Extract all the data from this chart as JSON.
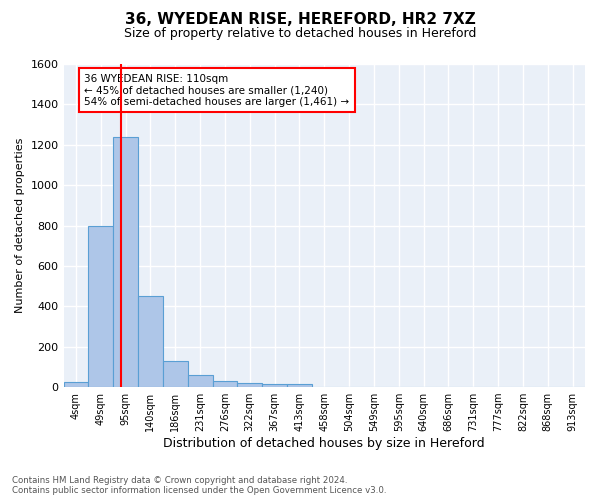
{
  "title": "36, WYEDEAN RISE, HEREFORD, HR2 7XZ",
  "subtitle": "Size of property relative to detached houses in Hereford",
  "xlabel": "Distribution of detached houses by size in Hereford",
  "ylabel": "Number of detached properties",
  "footer_line1": "Contains HM Land Registry data © Crown copyright and database right 2024.",
  "footer_line2": "Contains public sector information licensed under the Open Government Licence v3.0.",
  "annotation_line1": "36 WYEDEAN RISE: 110sqm",
  "annotation_line2": "← 45% of detached houses are smaller (1,240)",
  "annotation_line3": "54% of semi-detached houses are larger (1,461) →",
  "bar_labels": [
    "4sqm",
    "49sqm",
    "95sqm",
    "140sqm",
    "186sqm",
    "231sqm",
    "276sqm",
    "322sqm",
    "367sqm",
    "413sqm",
    "458sqm",
    "504sqm",
    "549sqm",
    "595sqm",
    "640sqm",
    "686sqm",
    "731sqm",
    "777sqm",
    "822sqm",
    "868sqm",
    "913sqm"
  ],
  "bar_values": [
    25,
    800,
    1240,
    450,
    130,
    62,
    28,
    20,
    15,
    15,
    0,
    0,
    0,
    0,
    0,
    0,
    0,
    0,
    0,
    0,
    0
  ],
  "bar_color": "#aec6e8",
  "bar_edge_color": "#5a9fd4",
  "background_color": "#eaf0f8",
  "grid_color": "#ffffff",
  "ylim_max": 1600,
  "yticks": [
    0,
    200,
    400,
    600,
    800,
    1000,
    1200,
    1400,
    1600
  ],
  "red_line_x": 1.833
}
